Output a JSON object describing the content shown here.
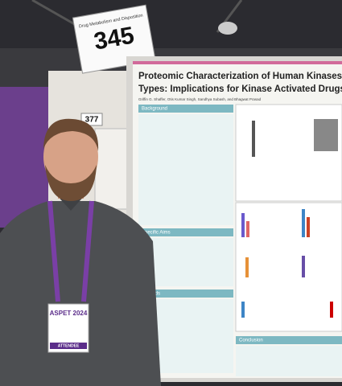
{
  "sign": {
    "caption": "Drug Metabolism and Disposition",
    "number": "345"
  },
  "booth_number": "377",
  "poster": {
    "title_lines": [
      "Proteomic Characterization of Human Kinases Across Ti",
      "Types: Implications for Kinase Activated Drugs"
    ],
    "authors": "Griffin G. Shaffer, Otis Kumar Singh, Sandhya Subash, and Bhagwat Prasad",
    "sections": [
      "Background",
      "Specific Aims",
      "Methods",
      "Conclusion"
    ]
  },
  "badge": {
    "event": "ASPET 2024",
    "role": "ATTENDEE"
  }
}
